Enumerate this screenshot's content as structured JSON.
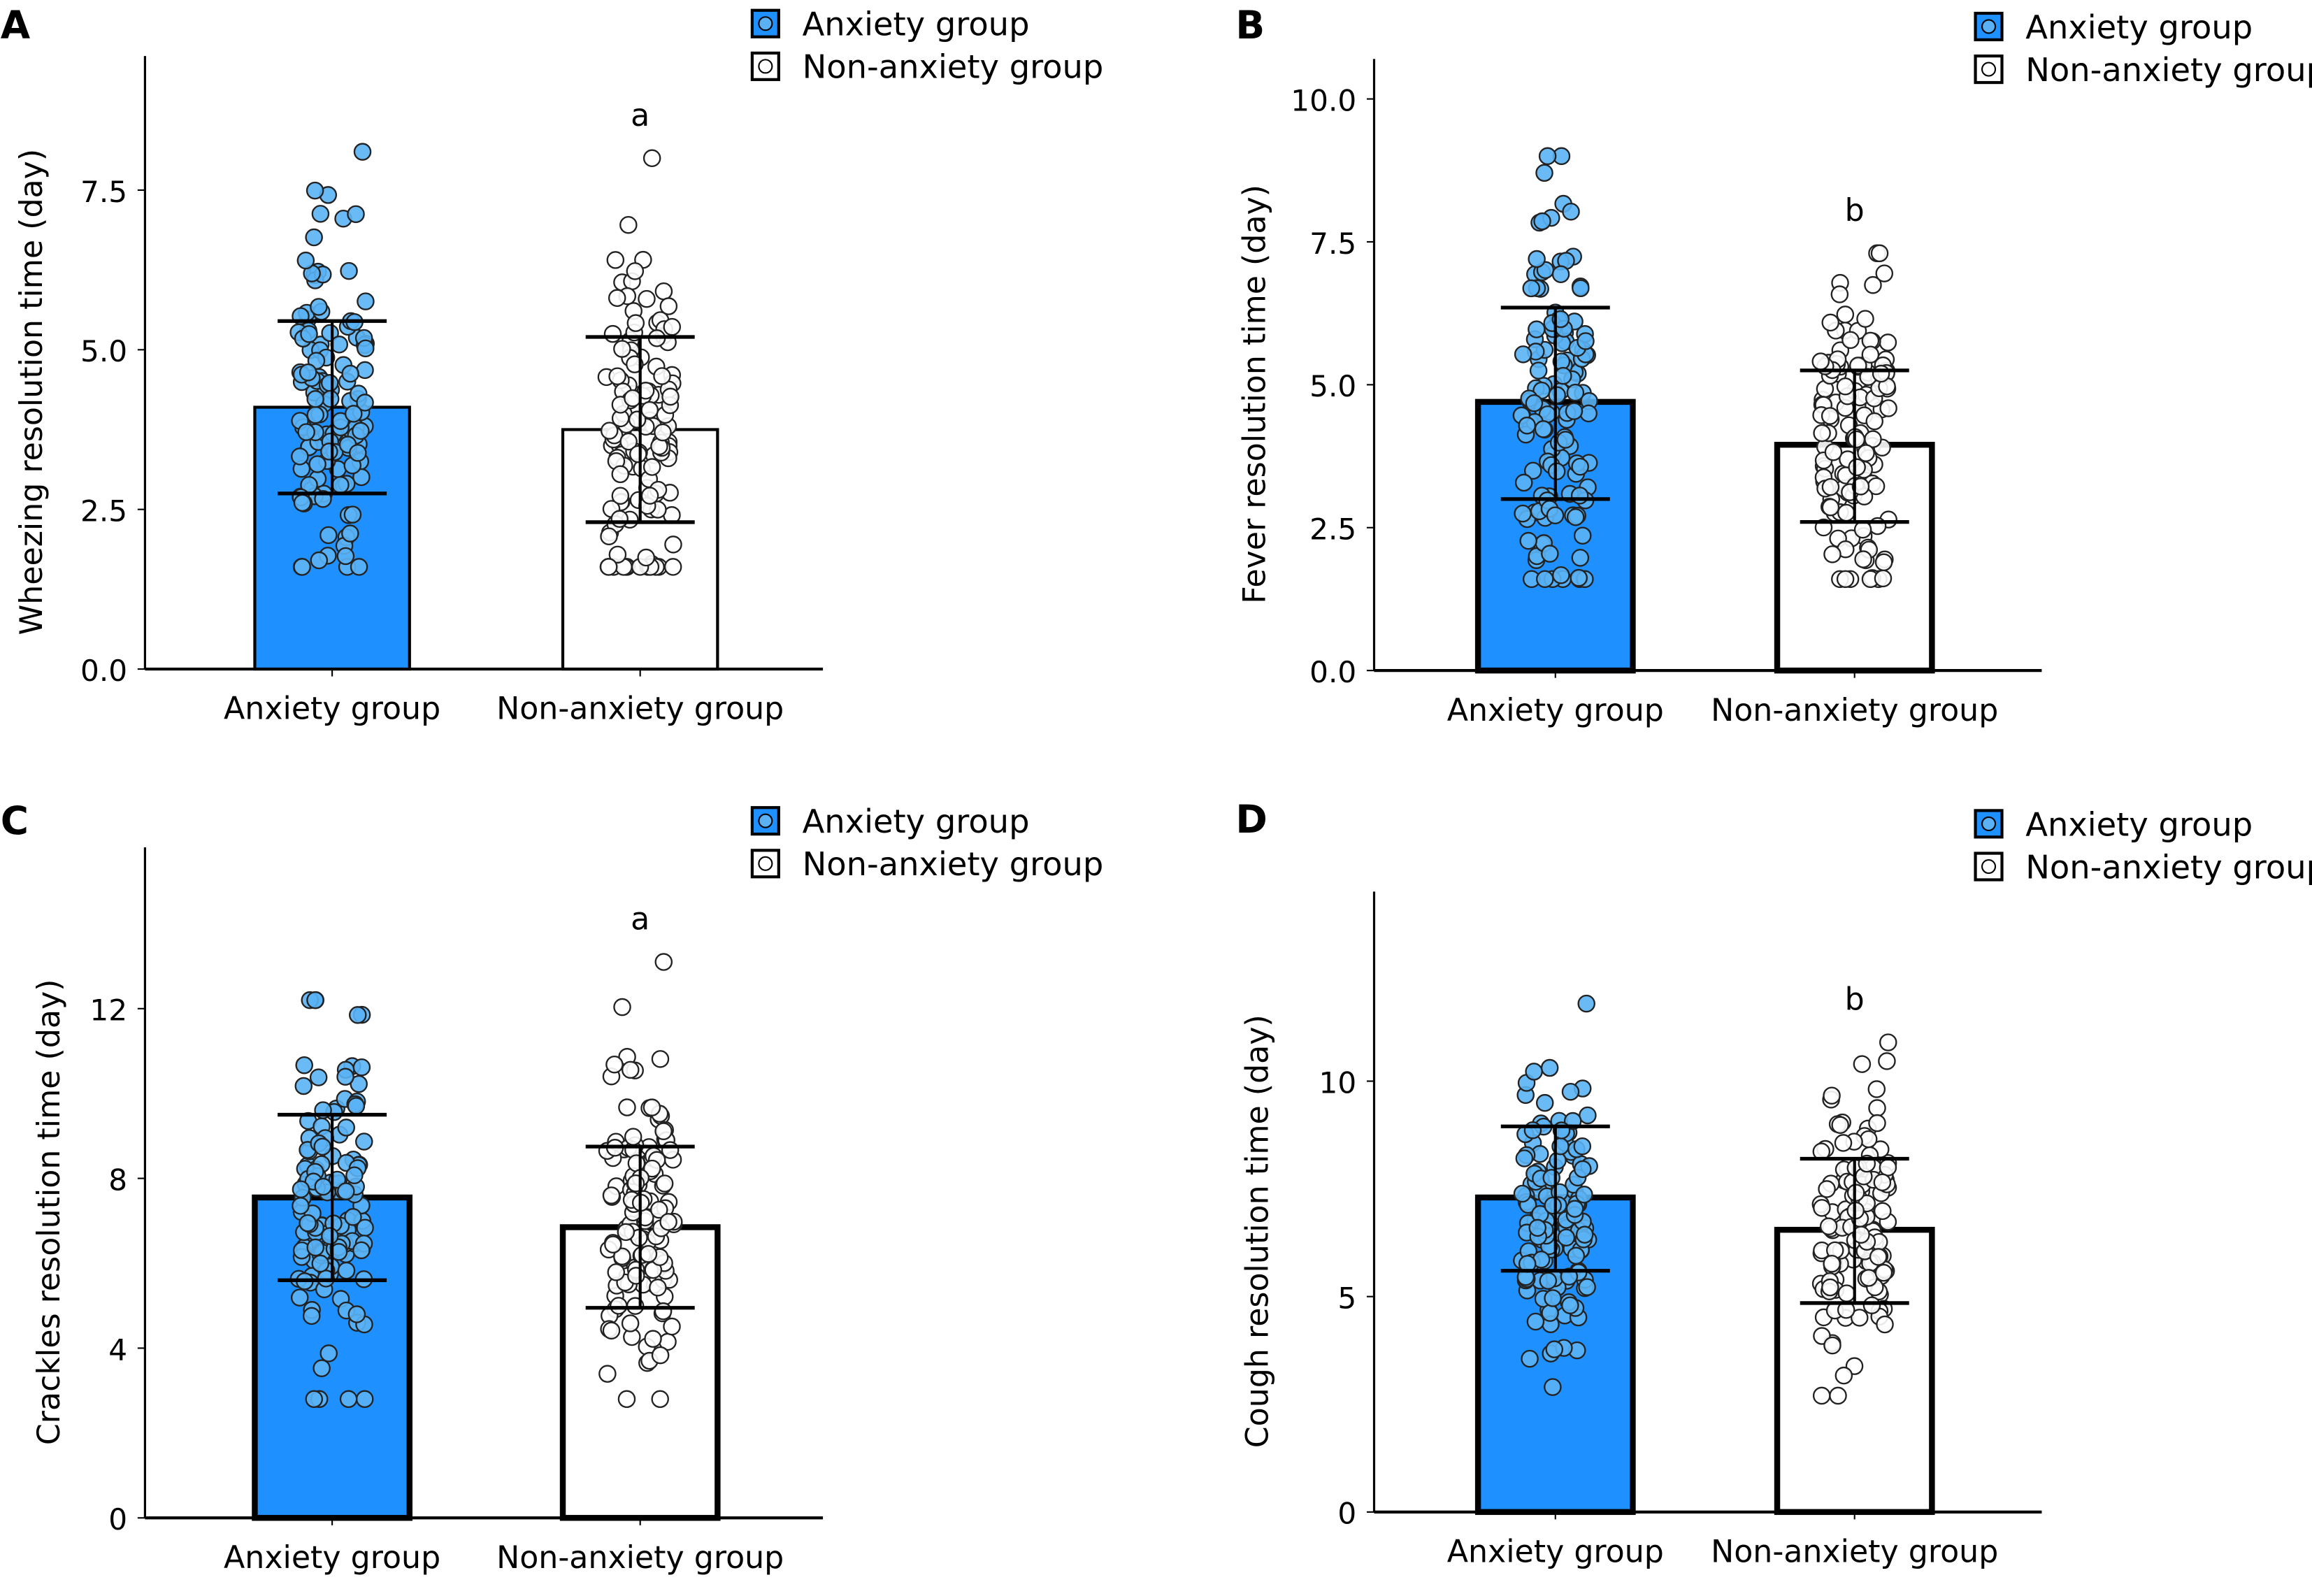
{
  "colors": {
    "anxiety": "#1E90FF",
    "anxiety_point": "#5AB2F5",
    "non_anxiety": "#FFFFFF",
    "outline": "#000000"
  },
  "legend": {
    "items": [
      "Anxiety group",
      "Non-anxiety group"
    ],
    "placement": "top-right"
  },
  "chart_data": [
    {
      "panel": "A",
      "type": "bar",
      "ylabel": "Wheezing resolution time (day)",
      "categories": [
        "Anxiety group",
        "Non-anxiety group"
      ],
      "yticks": [
        "0.0",
        "2.5",
        "5.0",
        "7.5"
      ],
      "ytick_values": [
        0,
        2.5,
        5,
        7.5
      ],
      "ylim": [
        0,
        9.6
      ],
      "significance": "a",
      "series": [
        {
          "name": "Anxiety group",
          "mean": 4.1,
          "sd_low": 2.75,
          "sd_high": 5.45,
          "points_min": 1.6,
          "points_max": 8.1
        },
        {
          "name": "Non-anxiety group",
          "mean": 3.75,
          "sd_low": 2.3,
          "sd_high": 5.2,
          "points_min": 1.6,
          "points_max": 8.0
        }
      ]
    },
    {
      "panel": "B",
      "type": "bar",
      "ylabel": "Fever resolution time (day)",
      "categories": [
        "Anxiety group",
        "Non-anxiety group"
      ],
      "yticks": [
        "0.0",
        "2.5",
        "5.0",
        "7.5",
        "10.0"
      ],
      "ytick_values": [
        0,
        2.5,
        5,
        7.5,
        10
      ],
      "ylim": [
        0,
        10.7
      ],
      "significance": "b",
      "series": [
        {
          "name": "Anxiety group",
          "mean": 4.7,
          "sd_low": 3.0,
          "sd_high": 6.35,
          "points_min": 1.6,
          "points_max": 9.0
        },
        {
          "name": "Non-anxiety group",
          "mean": 3.95,
          "sd_low": 2.6,
          "sd_high": 5.25,
          "points_min": 1.6,
          "points_max": 7.3
        }
      ]
    },
    {
      "panel": "C",
      "type": "bar",
      "ylabel": "Crackles resolution time (day)",
      "categories": [
        "Anxiety group",
        "Non-anxiety group"
      ],
      "yticks": [
        "0",
        "4",
        "8",
        "12"
      ],
      "ytick_values": [
        0,
        4,
        8,
        12
      ],
      "ylim": [
        0,
        15.8
      ],
      "significance": "a",
      "series": [
        {
          "name": "Anxiety group",
          "mean": 7.55,
          "sd_low": 5.6,
          "sd_high": 9.5,
          "points_min": 2.8,
          "points_max": 12.2
        },
        {
          "name": "Non-anxiety group",
          "mean": 6.85,
          "sd_low": 4.95,
          "sd_high": 8.75,
          "points_min": 2.8,
          "points_max": 13.1
        }
      ]
    },
    {
      "panel": "D",
      "type": "bar",
      "ylabel": "Cough resolution time (day)",
      "categories": [
        "Anxiety group",
        "Non-anxiety group"
      ],
      "yticks": [
        "0",
        "5",
        "10"
      ],
      "ytick_values": [
        0,
        5,
        10
      ],
      "ylim": [
        0,
        14.4
      ],
      "significance": "b",
      "series": [
        {
          "name": "Anxiety group",
          "mean": 7.3,
          "sd_low": 5.6,
          "sd_high": 8.95,
          "points_min": 2.9,
          "points_max": 11.8
        },
        {
          "name": "Non-anxiety group",
          "mean": 6.55,
          "sd_low": 4.85,
          "sd_high": 8.2,
          "points_min": 2.7,
          "points_max": 10.9
        }
      ]
    }
  ]
}
